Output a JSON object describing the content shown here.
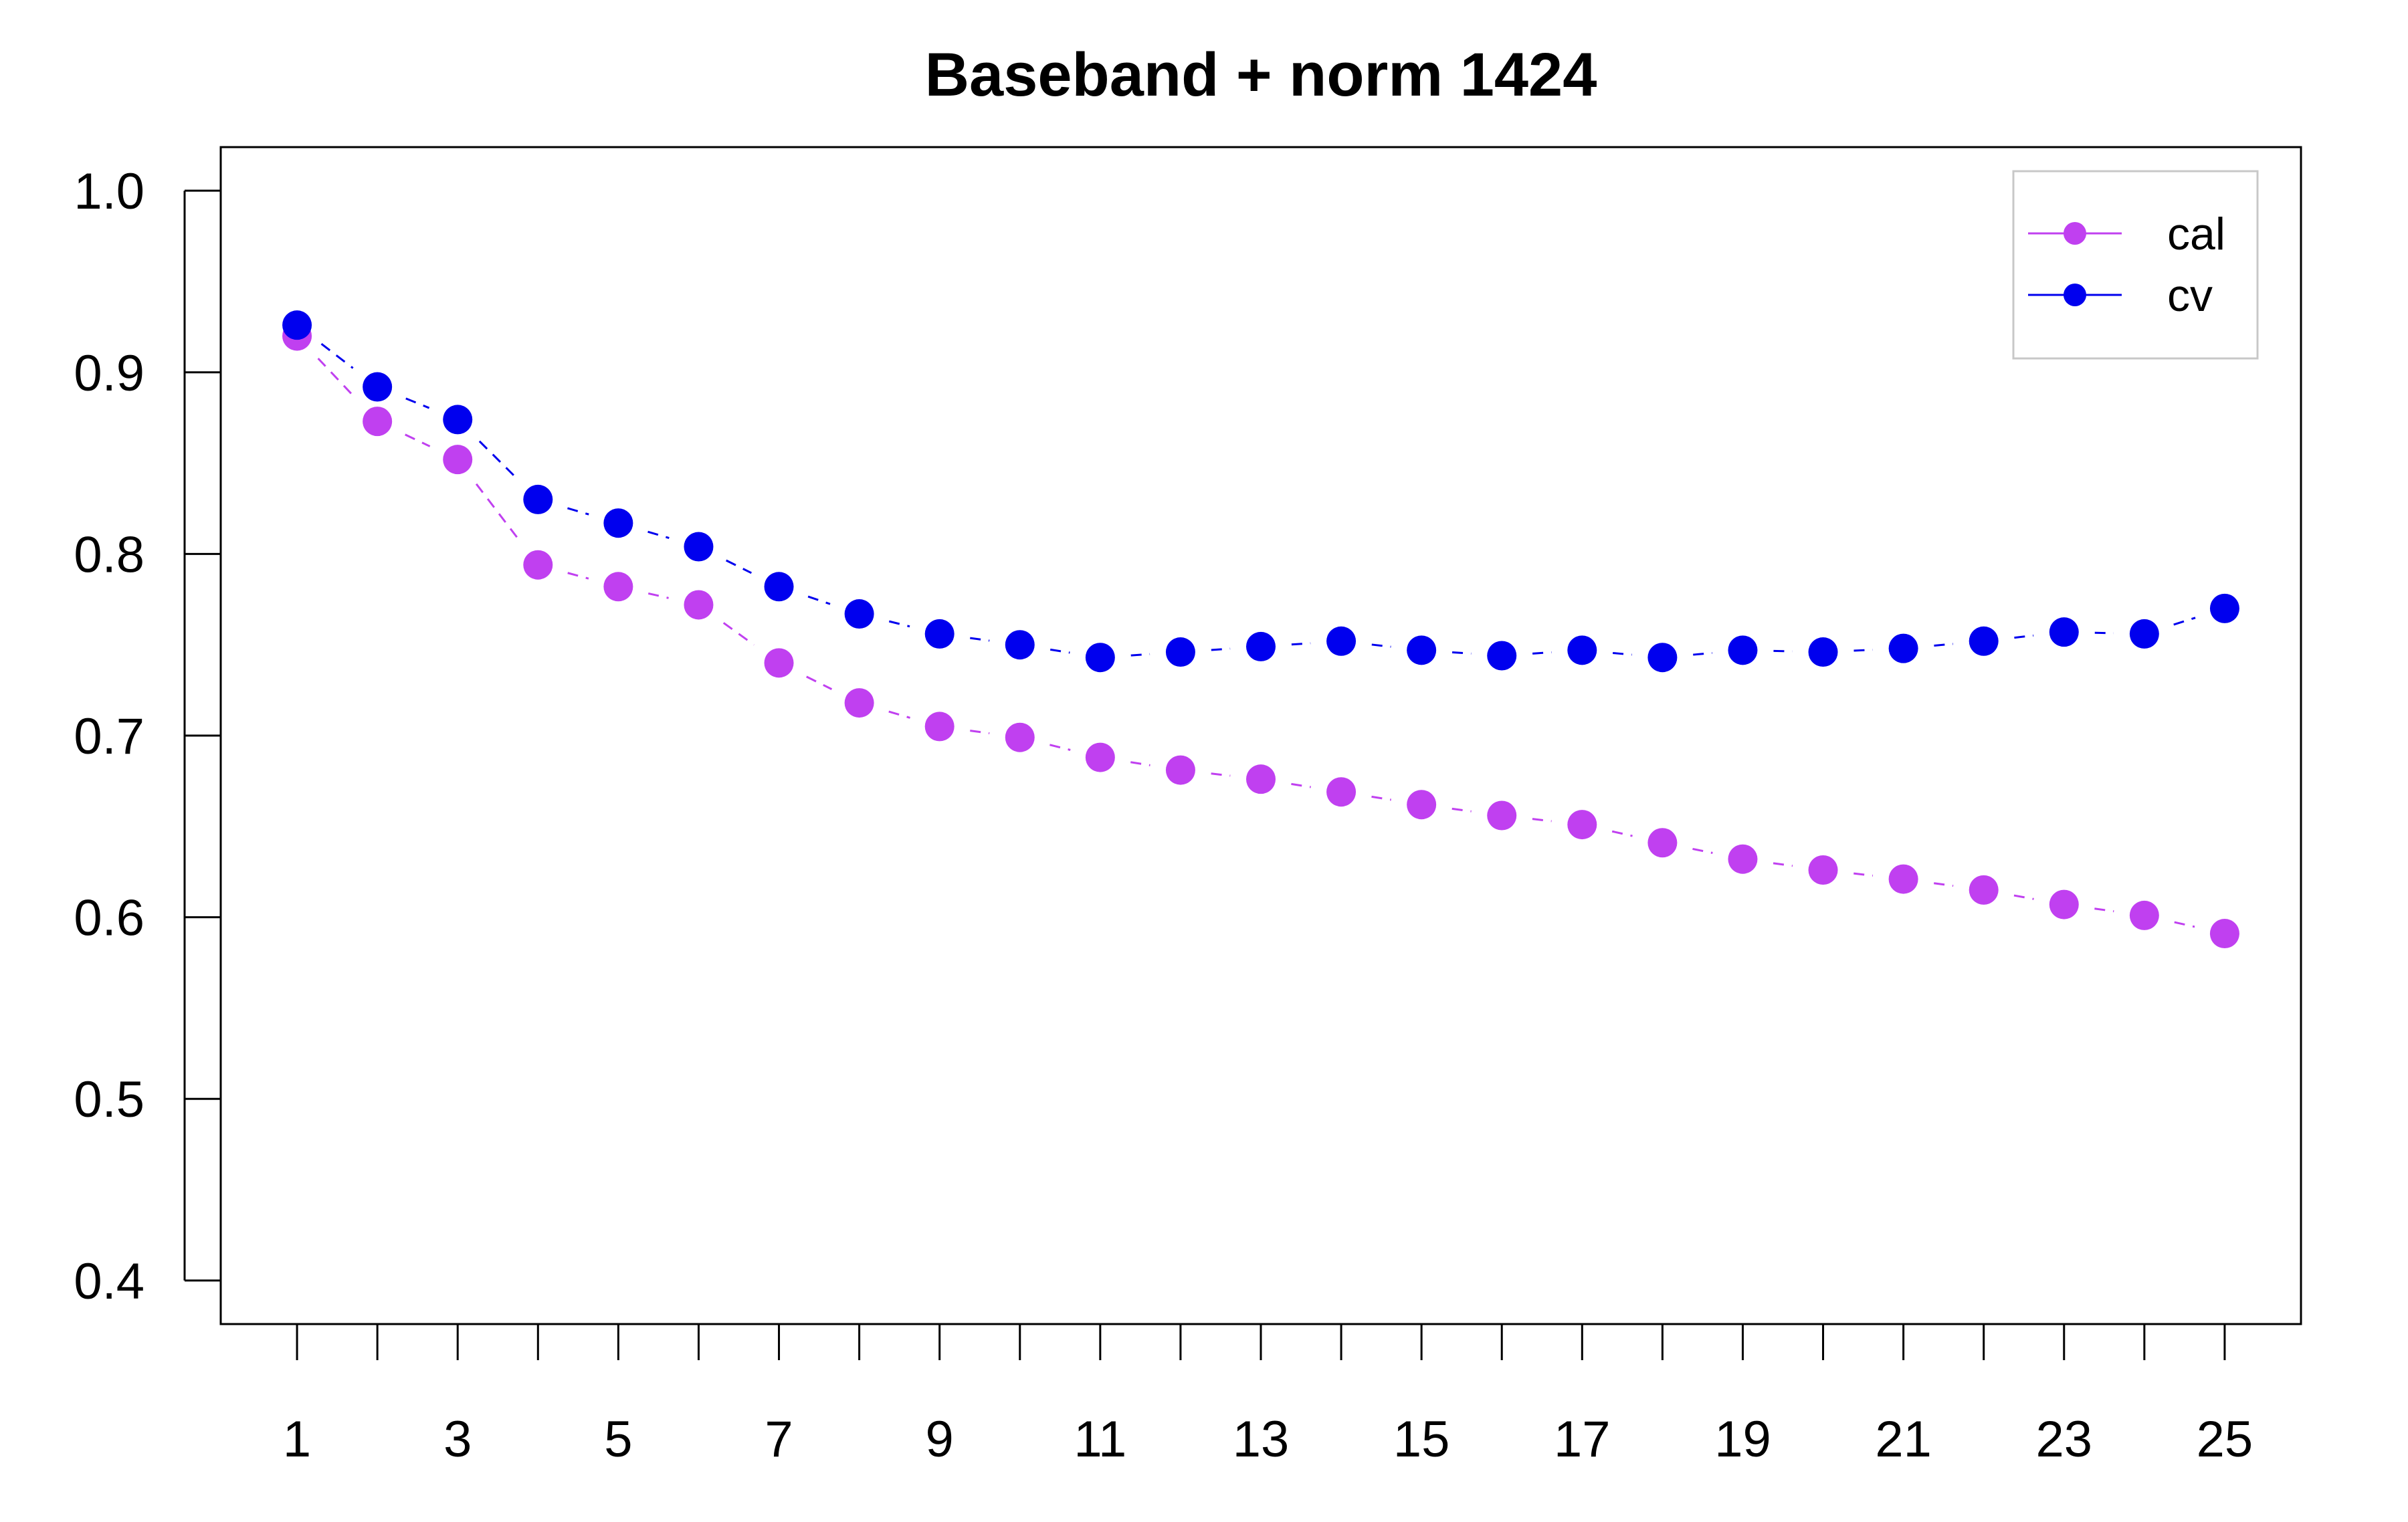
{
  "chart_data": {
    "type": "line",
    "title": "Baseband + norm 1424",
    "xlabel": "",
    "ylabel": "",
    "x": [
      1,
      2,
      3,
      4,
      5,
      6,
      7,
      8,
      9,
      10,
      11,
      12,
      13,
      14,
      15,
      16,
      17,
      18,
      19,
      20,
      21,
      22,
      23,
      24,
      25
    ],
    "x_tick_labels": [
      "1",
      "3",
      "5",
      "7",
      "9",
      "11",
      "13",
      "15",
      "17",
      "19",
      "21",
      "23",
      "25"
    ],
    "y_tick_labels": [
      "0.4",
      "0.5",
      "0.6",
      "0.7",
      "0.8",
      "0.9",
      "1.0"
    ],
    "xlim": [
      0.05,
      25.95
    ],
    "ylim": [
      0.376,
      1.024
    ],
    "grid": false,
    "legend_position": "top-right",
    "series": [
      {
        "name": "cal",
        "color": "#C040F0",
        "values": [
          0.92,
          0.873,
          0.852,
          0.794,
          0.782,
          0.772,
          0.74,
          0.718,
          0.705,
          0.699,
          0.688,
          0.681,
          0.676,
          0.669,
          0.662,
          0.656,
          0.651,
          0.641,
          0.632,
          0.626,
          0.621,
          0.615,
          0.607,
          0.601,
          0.591
        ]
      },
      {
        "name": "cv",
        "color": "#0000EE",
        "values": [
          0.926,
          0.892,
          0.874,
          0.83,
          0.817,
          0.804,
          0.782,
          0.767,
          0.756,
          0.75,
          0.743,
          0.746,
          0.749,
          0.752,
          0.747,
          0.744,
          0.747,
          0.743,
          0.747,
          0.746,
          0.748,
          0.752,
          0.757,
          0.756,
          0.77
        ]
      }
    ]
  }
}
